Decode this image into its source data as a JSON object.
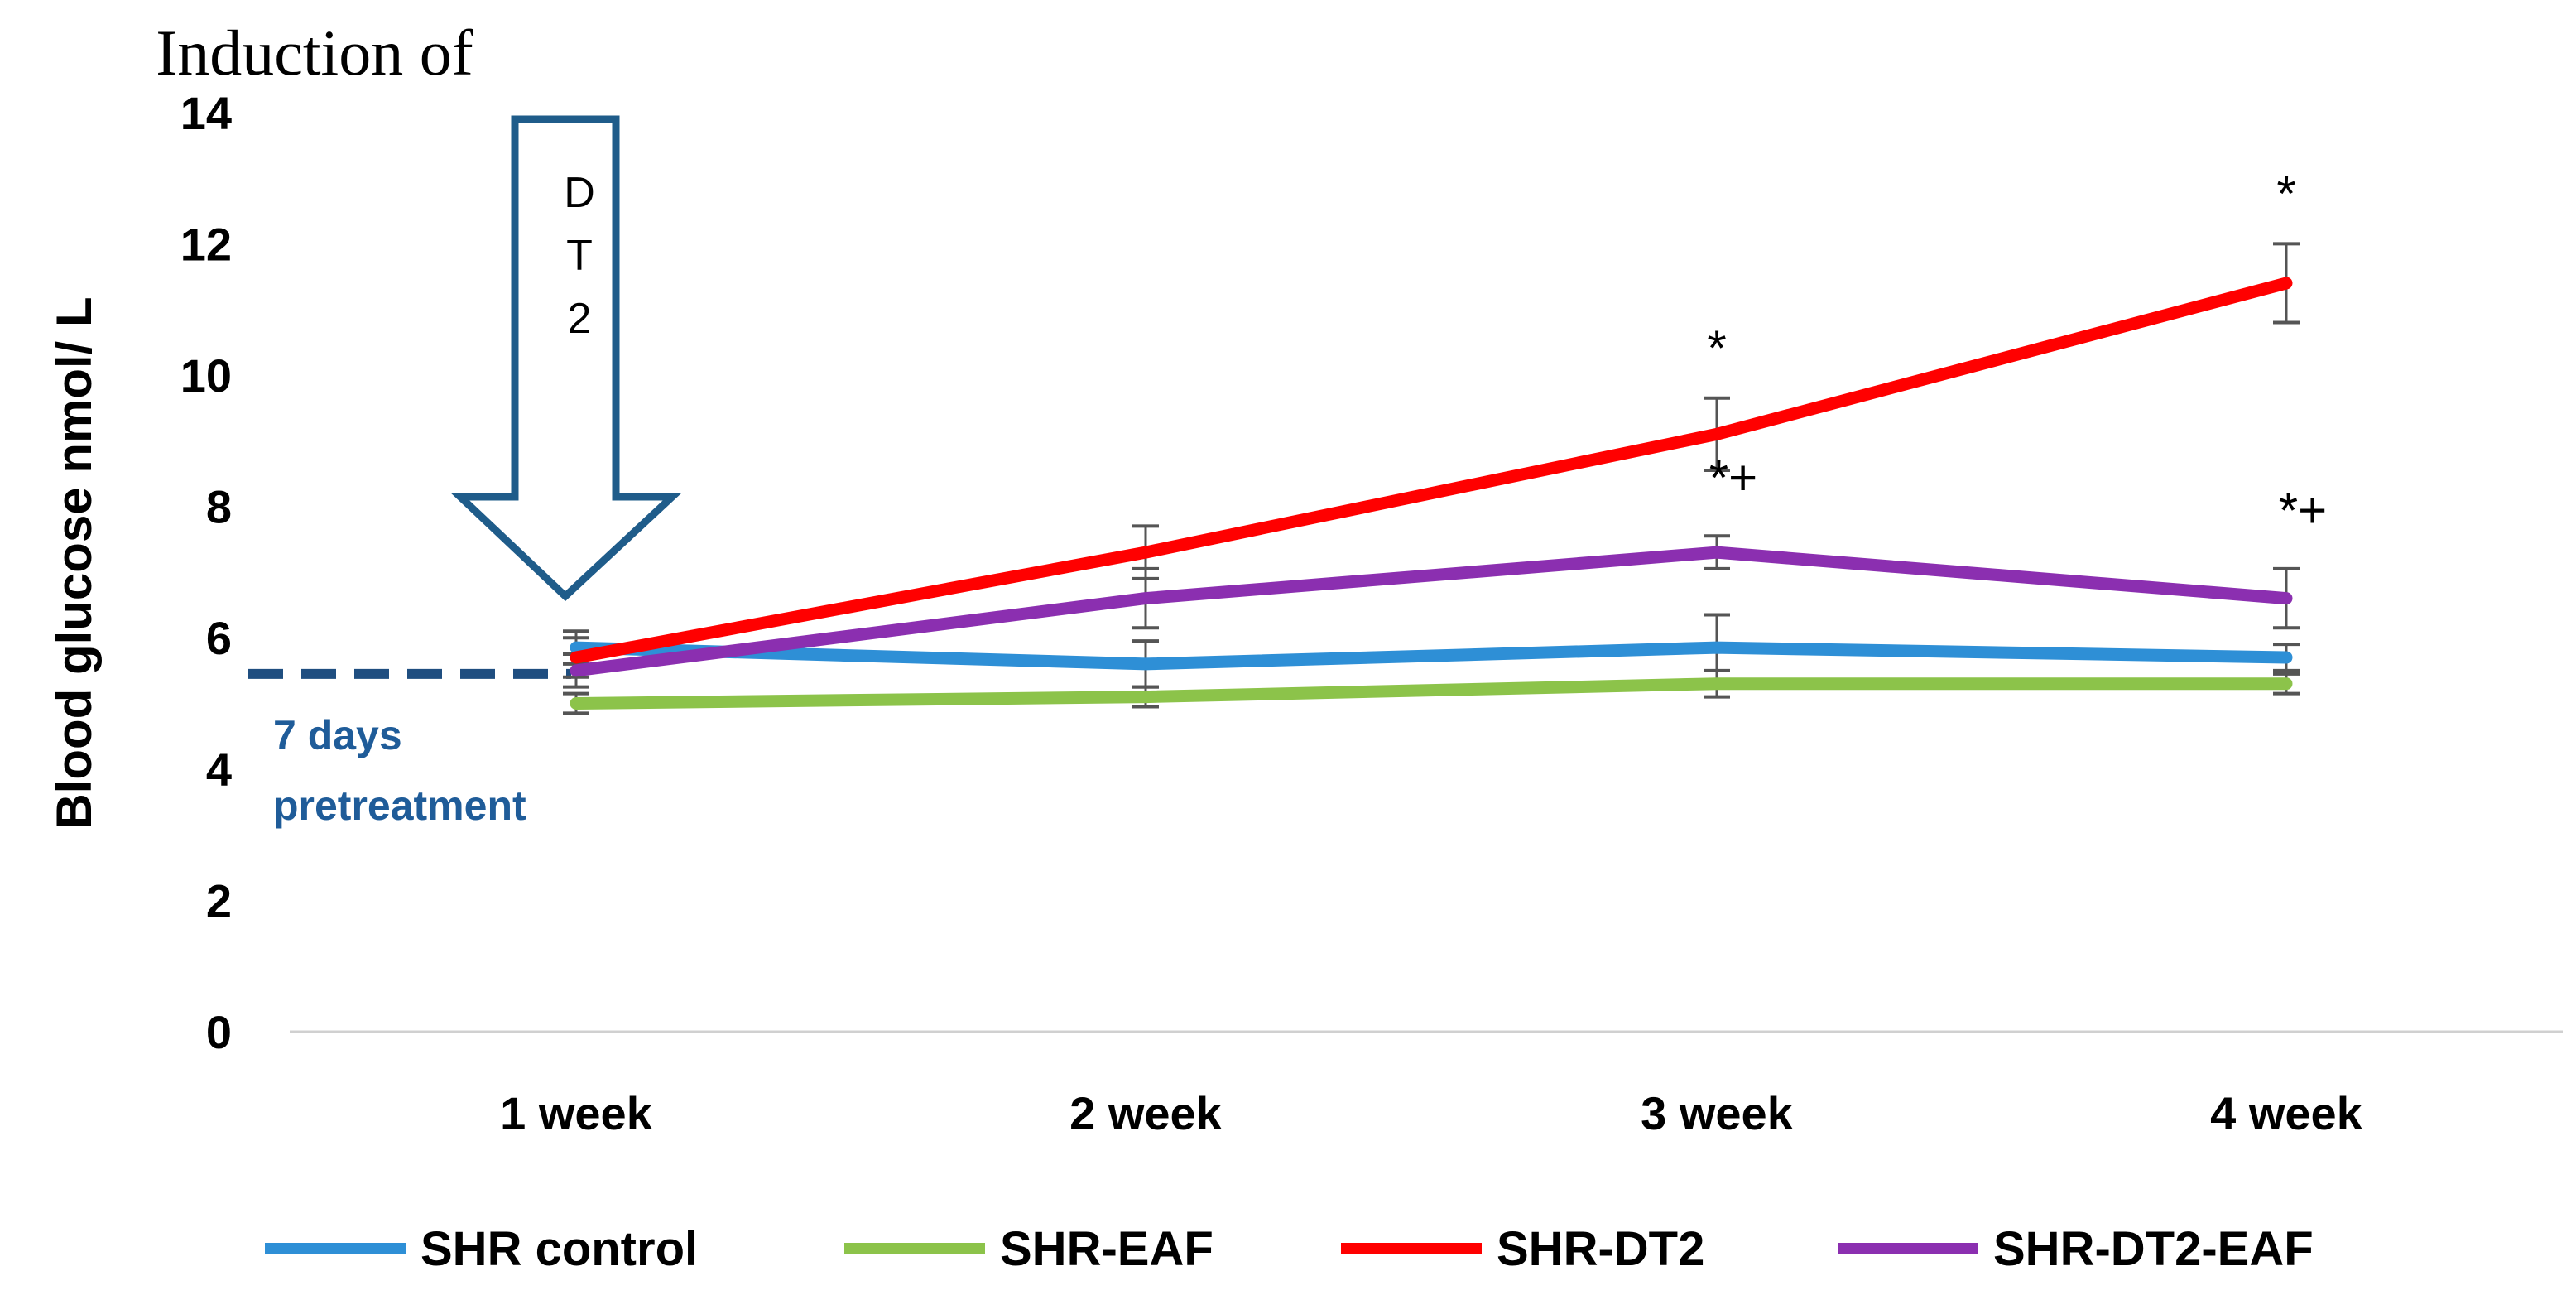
{
  "chart_data": {
    "type": "line",
    "title": "",
    "xlabel": "",
    "ylabel": "Blood glucose nmol/ L",
    "ylim": [
      0,
      14
    ],
    "yticks": [
      "0",
      "2",
      "4",
      "6",
      "8",
      "10",
      "12",
      "14"
    ],
    "categories": [
      "1 week",
      "2 week",
      "3 week",
      "4 week"
    ],
    "series": [
      {
        "name": "SHR control",
        "color": "#2e8fd6",
        "values": [
          5.85,
          5.6,
          5.85,
          5.7
        ],
        "errors": [
          0.25,
          0.35,
          0.5,
          0.2
        ]
      },
      {
        "name": "SHR-EAF",
        "color": "#8cc34a",
        "values": [
          5.0,
          5.1,
          5.3,
          5.3
        ],
        "errors": [
          0.15,
          0.15,
          0.2,
          0.15
        ]
      },
      {
        "name": "SHR-DT2",
        "color": "#ff0000",
        "values": [
          5.7,
          7.3,
          9.1,
          11.4
        ],
        "errors": [
          0.3,
          0.4,
          0.55,
          0.6
        ]
      },
      {
        "name": "SHR-DT2-EAF",
        "color": "#8b2fb0",
        "values": [
          5.5,
          6.6,
          7.3,
          6.6
        ],
        "errors": [
          0.25,
          0.45,
          0.25,
          0.45
        ]
      }
    ],
    "significance": [
      {
        "series": "SHR-DT2",
        "category": "3 week",
        "label": "*"
      },
      {
        "series": "SHR-DT2",
        "category": "4 week",
        "label": "*"
      },
      {
        "series": "SHR-DT2-EAF",
        "category": "3 week",
        "label": "*+"
      },
      {
        "series": "SHR-DT2-EAF",
        "category": "4 week",
        "label": "*+"
      }
    ],
    "annotations": {
      "induction_label": "Induction of",
      "arrow_text": [
        "D",
        "T",
        "2"
      ],
      "baseline_value": 5.45,
      "pretreatment_line1": "7 days",
      "pretreatment_line2": "pretreatment"
    },
    "legend_position": "bottom",
    "grid": false
  }
}
